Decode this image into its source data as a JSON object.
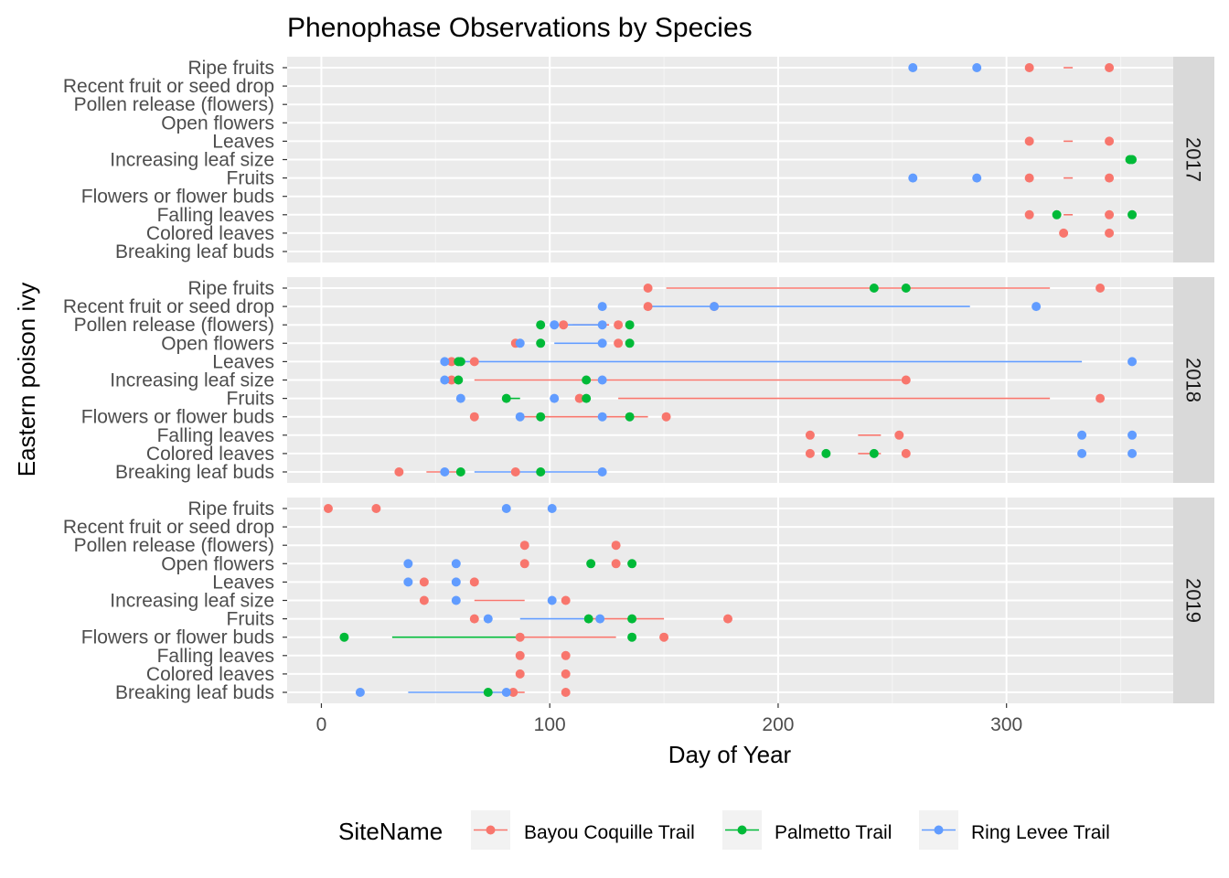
{
  "chart_data": {
    "type": "scatter",
    "title": "Phenophase Observations by Species",
    "xlabel": "Day of Year",
    "ylabel": "Eastern poison ivy",
    "xlim": [
      -15,
      373
    ],
    "x_ticks": [
      0,
      100,
      200,
      300
    ],
    "grid": true,
    "legend_position": "bottom",
    "legend_title": "SiteName",
    "categories": [
      "Breaking leaf buds",
      "Colored leaves",
      "Falling leaves",
      "Flowers or flower buds",
      "Fruits",
      "Increasing leaf size",
      "Leaves",
      "Open flowers",
      "Pollen release (flowers)",
      "Recent fruit or seed drop",
      "Ripe fruits"
    ],
    "series": [
      {
        "name": "Bayou Coquille Trail",
        "color": "#F8766D"
      },
      {
        "name": "Palmetto Trail",
        "color": "#00BA38"
      },
      {
        "name": "Ring Levee Trail",
        "color": "#619CFF"
      }
    ],
    "panels": [
      {
        "label": "2017",
        "points": [
          {
            "site": 2,
            "phase": "Ripe fruits",
            "x": [
              259,
              287
            ]
          },
          {
            "site": 0,
            "phase": "Ripe fruits",
            "x": [
              310,
              345
            ]
          },
          {
            "site": 0,
            "phase": "Leaves",
            "x": [
              310,
              345
            ]
          },
          {
            "site": 1,
            "phase": "Increasing leaf size",
            "x": [
              354,
              355
            ]
          },
          {
            "site": 2,
            "phase": "Fruits",
            "x": [
              259,
              287
            ]
          },
          {
            "site": 0,
            "phase": "Fruits",
            "x": [
              310,
              345
            ]
          },
          {
            "site": 0,
            "phase": "Falling leaves",
            "x": [
              310,
              345
            ]
          },
          {
            "site": 1,
            "phase": "Falling leaves",
            "x": [
              322,
              355
            ]
          },
          {
            "site": 0,
            "phase": "Colored leaves",
            "x": [
              325,
              345
            ]
          }
        ],
        "lines": [
          {
            "site": 0,
            "phase": "Ripe fruits",
            "x0": 325,
            "x1": 329
          },
          {
            "site": 0,
            "phase": "Leaves",
            "x0": 325,
            "x1": 329
          },
          {
            "site": 0,
            "phase": "Fruits",
            "x0": 325,
            "x1": 329
          },
          {
            "site": 0,
            "phase": "Falling leaves",
            "x0": 325,
            "x1": 329
          }
        ]
      },
      {
        "label": "2018",
        "points": [
          {
            "site": 0,
            "phase": "Ripe fruits",
            "x": [
              143,
              341
            ]
          },
          {
            "site": 1,
            "phase": "Ripe fruits",
            "x": [
              242,
              256
            ]
          },
          {
            "site": 0,
            "phase": "Recent fruit or seed drop",
            "x": [
              143,
              172
            ]
          },
          {
            "site": 2,
            "phase": "Recent fruit or seed drop",
            "x": [
              123,
              172,
              313
            ]
          },
          {
            "site": 0,
            "phase": "Pollen release (flowers)",
            "x": [
              106,
              130
            ]
          },
          {
            "site": 1,
            "phase": "Pollen release (flowers)",
            "x": [
              96,
              135
            ]
          },
          {
            "site": 2,
            "phase": "Pollen release (flowers)",
            "x": [
              102,
              123
            ]
          },
          {
            "site": 0,
            "phase": "Open flowers",
            "x": [
              85,
              130
            ]
          },
          {
            "site": 1,
            "phase": "Open flowers",
            "x": [
              96,
              135
            ]
          },
          {
            "site": 2,
            "phase": "Open flowers",
            "x": [
              87,
              123
            ]
          },
          {
            "site": 0,
            "phase": "Leaves",
            "x": [
              57,
              67
            ]
          },
          {
            "site": 1,
            "phase": "Leaves",
            "x": [
              60,
              61
            ]
          },
          {
            "site": 2,
            "phase": "Leaves",
            "x": [
              54,
              355
            ]
          },
          {
            "site": 0,
            "phase": "Increasing leaf size",
            "x": [
              57,
              256
            ]
          },
          {
            "site": 1,
            "phase": "Increasing leaf size",
            "x": [
              60,
              116
            ]
          },
          {
            "site": 2,
            "phase": "Increasing leaf size",
            "x": [
              54,
              123
            ]
          },
          {
            "site": 0,
            "phase": "Fruits",
            "x": [
              113,
              341
            ]
          },
          {
            "site": 1,
            "phase": "Fruits",
            "x": [
              81,
              116
            ]
          },
          {
            "site": 2,
            "phase": "Fruits",
            "x": [
              61,
              102
            ]
          },
          {
            "site": 0,
            "phase": "Flowers or flower buds",
            "x": [
              67,
              151
            ]
          },
          {
            "site": 1,
            "phase": "Flowers or flower buds",
            "x": [
              96,
              135
            ]
          },
          {
            "site": 2,
            "phase": "Flowers or flower buds",
            "x": [
              87,
              123
            ]
          },
          {
            "site": 0,
            "phase": "Falling leaves",
            "x": [
              214,
              253
            ]
          },
          {
            "site": 2,
            "phase": "Falling leaves",
            "x": [
              333,
              355
            ]
          },
          {
            "site": 0,
            "phase": "Colored leaves",
            "x": [
              214,
              256
            ]
          },
          {
            "site": 1,
            "phase": "Colored leaves",
            "x": [
              221,
              242
            ]
          },
          {
            "site": 2,
            "phase": "Colored leaves",
            "x": [
              333,
              355
            ]
          },
          {
            "site": 0,
            "phase": "Breaking leaf buds",
            "x": [
              34,
              85
            ]
          },
          {
            "site": 1,
            "phase": "Breaking leaf buds",
            "x": [
              61,
              96
            ]
          },
          {
            "site": 2,
            "phase": "Breaking leaf buds",
            "x": [
              54,
              123
            ]
          }
        ],
        "lines": [
          {
            "site": 0,
            "phase": "Ripe fruits",
            "x0": 151,
            "x1": 319
          },
          {
            "site": 2,
            "phase": "Recent fruit or seed drop",
            "x0": 144,
            "x1": 284
          },
          {
            "site": 0,
            "phase": "Pollen release (flowers)",
            "x0": 110,
            "x1": 126
          },
          {
            "site": 2,
            "phase": "Pollen release (flowers)",
            "x0": 102,
            "x1": 123
          },
          {
            "site": 2,
            "phase": "Open flowers",
            "x0": 102,
            "x1": 123
          },
          {
            "site": 2,
            "phase": "Leaves",
            "x0": 54,
            "x1": 333
          },
          {
            "site": 0,
            "phase": "Increasing leaf size",
            "x0": 67,
            "x1": 254
          },
          {
            "site": 1,
            "phase": "Fruits",
            "x0": 81,
            "x1": 87
          },
          {
            "site": 0,
            "phase": "Fruits",
            "x0": 130,
            "x1": 319
          },
          {
            "site": 0,
            "phase": "Flowers or flower buds",
            "x0": 87,
            "x1": 143
          },
          {
            "site": 0,
            "phase": "Falling leaves",
            "x0": 235,
            "x1": 245
          },
          {
            "site": 0,
            "phase": "Colored leaves",
            "x0": 235,
            "x1": 245
          },
          {
            "site": 0,
            "phase": "Breaking leaf buds",
            "x0": 46,
            "x1": 60
          },
          {
            "site": 2,
            "phase": "Breaking leaf buds",
            "x0": 67,
            "x1": 123
          }
        ]
      },
      {
        "label": "2019",
        "points": [
          {
            "site": 0,
            "phase": "Ripe fruits",
            "x": [
              3,
              24
            ]
          },
          {
            "site": 2,
            "phase": "Ripe fruits",
            "x": [
              81,
              101
            ]
          },
          {
            "site": 0,
            "phase": "Pollen release (flowers)",
            "x": [
              89,
              129
            ]
          },
          {
            "site": 0,
            "phase": "Open flowers",
            "x": [
              89,
              129
            ]
          },
          {
            "site": 1,
            "phase": "Open flowers",
            "x": [
              118,
              136
            ]
          },
          {
            "site": 2,
            "phase": "Open flowers",
            "x": [
              38,
              59
            ]
          },
          {
            "site": 0,
            "phase": "Leaves",
            "x": [
              45,
              67
            ]
          },
          {
            "site": 2,
            "phase": "Leaves",
            "x": [
              38,
              59
            ]
          },
          {
            "site": 0,
            "phase": "Increasing leaf size",
            "x": [
              45,
              107
            ]
          },
          {
            "site": 2,
            "phase": "Increasing leaf size",
            "x": [
              59,
              101
            ]
          },
          {
            "site": 0,
            "phase": "Fruits",
            "x": [
              67,
              178
            ]
          },
          {
            "site": 1,
            "phase": "Fruits",
            "x": [
              117,
              136
            ]
          },
          {
            "site": 2,
            "phase": "Fruits",
            "x": [
              73,
              122
            ]
          },
          {
            "site": 0,
            "phase": "Flowers or flower buds",
            "x": [
              87,
              150
            ]
          },
          {
            "site": 1,
            "phase": "Flowers or flower buds",
            "x": [
              10,
              136
            ]
          },
          {
            "site": 0,
            "phase": "Falling leaves",
            "x": [
              87,
              107
            ]
          },
          {
            "site": 0,
            "phase": "Colored leaves",
            "x": [
              87,
              107
            ]
          },
          {
            "site": 0,
            "phase": "Breaking leaf buds",
            "x": [
              84,
              107
            ]
          },
          {
            "site": 1,
            "phase": "Breaking leaf buds",
            "x": [
              73
            ]
          },
          {
            "site": 2,
            "phase": "Breaking leaf buds",
            "x": [
              17,
              81
            ]
          }
        ],
        "lines": [
          {
            "site": 0,
            "phase": "Increasing leaf size",
            "x0": 67,
            "x1": 89
          },
          {
            "site": 2,
            "phase": "Fruits",
            "x0": 87,
            "x1": 115
          },
          {
            "site": 0,
            "phase": "Fruits",
            "x0": 118,
            "x1": 150
          },
          {
            "site": 1,
            "phase": "Flowers or flower buds",
            "x0": 31,
            "x1": 87
          },
          {
            "site": 0,
            "phase": "Flowers or flower buds",
            "x0": 87,
            "x1": 129
          },
          {
            "site": 2,
            "phase": "Breaking leaf buds",
            "x0": 38,
            "x1": 81
          },
          {
            "site": 0,
            "phase": "Breaking leaf buds",
            "x0": 85,
            "x1": 89
          }
        ]
      }
    ]
  }
}
